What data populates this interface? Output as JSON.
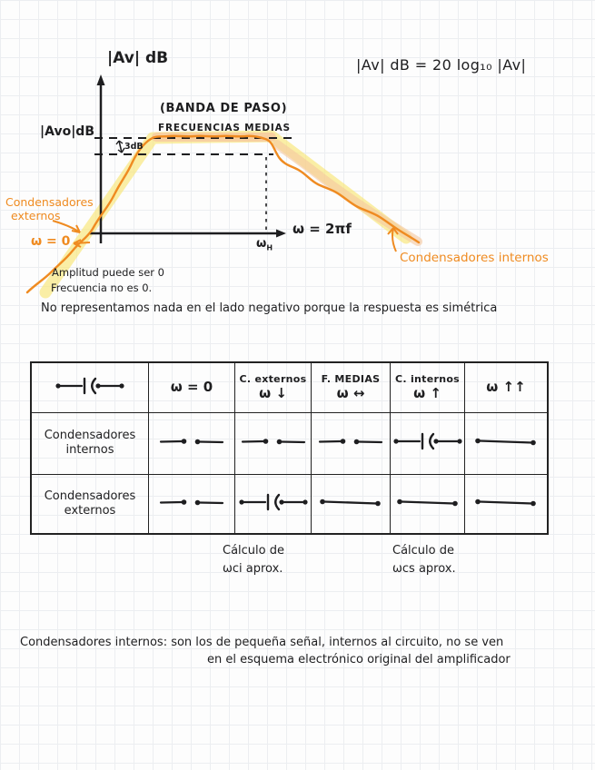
{
  "colors": {
    "ink": "#1e1e20",
    "orange": "#ef8b21",
    "highlight_yellow": "#f8e570",
    "highlight_peach": "#f6c8a0",
    "grid": "#eceef1"
  },
  "formula": "|Av| dB = 20 log₁₀ |Av|",
  "graph": {
    "y_axis_label": "|Av| dB",
    "gain_label": "|Avo|dB",
    "band_caption": "(BANDA DE PASO)",
    "band_caption2": "FRECUENCIAS MEDIAS",
    "three_db": "3dB",
    "cutoff_base": "ω",
    "cutoff_sub": "H",
    "x_axis_label": "ω = 2πf",
    "omega_zero": "ω = 0",
    "ext_caps_line1": "Condensadores",
    "ext_caps_line2": "externos",
    "int_caps": "Condensadores internos"
  },
  "notes": {
    "amplitude": "Amplitud puede ser 0",
    "frequency": "Frecuencia no es 0.",
    "symmetry": "No representamos nada en el lado negativo porque la respuesta es simétrica"
  },
  "table": {
    "header": {
      "col1_symbol": "capacitor",
      "col2": "ω = 0",
      "col3_line1": "C. externos",
      "col3_line2": "ω ↓",
      "col4_line1": "F. MEDIAS",
      "col4_line2": "ω ↔",
      "col5_line1": "C. internos",
      "col5_line2": "ω ↑",
      "col6": "ω ↑↑"
    },
    "rows": [
      {
        "label_line1": "Condensadores",
        "label_line2": "internos",
        "cells": [
          "open",
          "open",
          "open",
          "capacitor",
          "short"
        ]
      },
      {
        "label_line1": "Condensadores",
        "label_line2": "externos",
        "cells": [
          "open",
          "capacitor",
          "short",
          "short",
          "short"
        ]
      }
    ]
  },
  "calc_notes": [
    {
      "line1": "Cálculo de",
      "line2": "ωci aprox."
    },
    {
      "line1": "Cálculo de",
      "line2": "ωcs aprox."
    }
  ],
  "footer": {
    "line1": "Condensadores internos: son los de pequeña señal, internos al circuito, no se ven",
    "line2": "en el esquema electrónico original del amplificador"
  }
}
